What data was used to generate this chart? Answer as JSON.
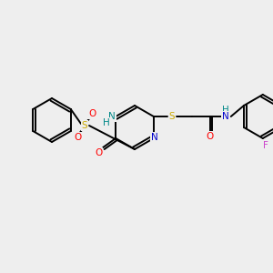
{
  "bg_color": "#eeeeee",
  "bond_color": "#000000",
  "atom_colors": {
    "N": "#0000cc",
    "O": "#ff0000",
    "S": "#ccaa00",
    "F": "#cc44cc",
    "NH": "#008888",
    "H": "#008888"
  },
  "font_size": 7.5,
  "line_width": 1.4
}
